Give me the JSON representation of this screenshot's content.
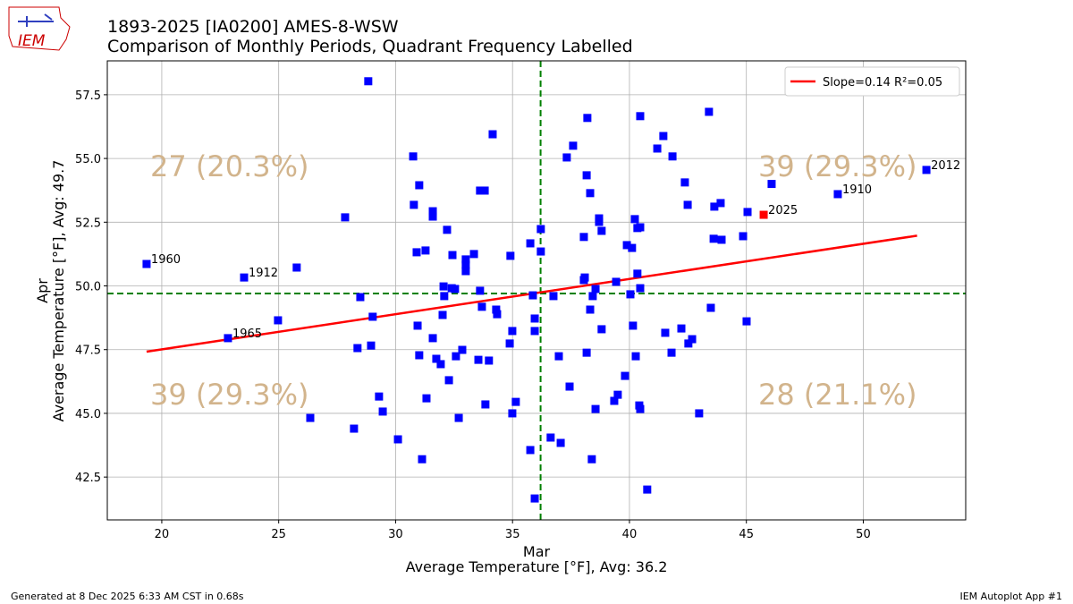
{
  "header": {
    "logo": "IEM"
  },
  "chart_data": {
    "type": "scatter",
    "title": "1893-2025 [IA0200] AMES-8-WSW",
    "subtitle": "Comparison of Monthly Periods, Quadrant Frequency Labelled",
    "x_label": "Mar",
    "x_sublabel": "Average Temperature [°F], Avg: 36.2",
    "y_label": "Apr",
    "y_sublabel": "Average Temperature [°F], Avg: 49.7",
    "xlim": [
      17.67,
      54.38
    ],
    "ylim": [
      40.82,
      58.83
    ],
    "xticks": [
      20,
      25,
      30,
      35,
      40,
      45,
      50
    ],
    "yticks": [
      42.5,
      {
        "value": 45,
        "label": "45.0"
      },
      47.5,
      {
        "value": 50,
        "label": "50.0"
      },
      52.5,
      {
        "value": 55,
        "label": "55.0"
      },
      57.5
    ],
    "grid": true,
    "x_avg": 36.2,
    "y_avg": 49.7,
    "avg_color": "#008000",
    "series": [
      {
        "color": "#0000ff",
        "x": [
          19.35,
          23.52,
          22.83,
          24.97,
          25.77,
          26.35,
          27.84,
          28.22,
          28.49,
          28.37,
          28.83,
          29.02,
          28.95,
          29.29,
          29.45,
          30.1,
          30.75,
          30.78,
          31.01,
          30.9,
          31.28,
          30.94,
          31.01,
          31.13,
          31.32,
          31.59,
          31.59,
          31.59,
          31.74,
          31.93,
          32.05,
          32.08,
          32.01,
          32.2,
          32.28,
          32.43,
          32.4,
          32.54,
          32.58,
          32.7,
          32.85,
          33.0,
          33.0,
          33.0,
          33.35,
          33.54,
          33.61,
          33.81,
          33.61,
          33.69,
          33.84,
          33.99,
          34.15,
          34.3,
          34.34,
          34.91,
          34.88,
          34.99,
          34.99,
          35.14,
          35.76,
          35.76,
          35.87,
          35.95,
          35.95,
          35.95,
          36.21,
          36.21,
          36.63,
          36.75,
          36.98,
          37.06,
          37.32,
          37.44,
          37.59,
          38.05,
          38.05,
          38.09,
          38.17,
          38.17,
          38.2,
          38.32,
          38.32,
          38.39,
          38.43,
          38.55,
          38.55,
          38.7,
          38.7,
          38.81,
          38.81,
          39.35,
          39.43,
          39.5,
          39.81,
          39.89,
          40.04,
          40.11,
          40.15,
          40.23,
          40.27,
          40.34,
          40.34,
          40.46,
          40.46,
          40.46,
          40.42,
          40.46,
          40.76,
          41.19,
          41.45,
          41.53,
          41.84,
          41.8,
          42.22,
          42.37,
          42.49,
          42.52,
          42.68,
          42.98,
          43.4,
          43.48,
          43.63,
          43.6,
          43.9,
          43.94,
          44.86,
          45.05,
          45.01,
          46.08,
          48.91,
          52.7
        ],
        "values": [
          50.86,
          50.33,
          47.95,
          48.65,
          50.72,
          44.82,
          52.69,
          44.4,
          49.56,
          47.56,
          58.03,
          48.79,
          47.66,
          45.66,
          45.07,
          43.98,
          55.08,
          53.18,
          53.95,
          51.32,
          51.39,
          48.44,
          47.28,
          43.2,
          45.59,
          52.93,
          52.72,
          47.95,
          47.14,
          46.93,
          49.98,
          49.6,
          48.86,
          52.2,
          46.3,
          51.21,
          49.91,
          49.88,
          47.24,
          44.82,
          47.49,
          51.04,
          50.83,
          50.58,
          51.25,
          47.1,
          53.74,
          53.74,
          49.81,
          49.18,
          45.35,
          47.07,
          55.95,
          49.07,
          48.89,
          51.18,
          47.74,
          48.23,
          45.0,
          45.45,
          51.67,
          43.56,
          49.63,
          48.72,
          48.23,
          41.66,
          52.23,
          51.35,
          44.05,
          49.6,
          47.24,
          43.84,
          55.04,
          46.05,
          55.5,
          51.92,
          50.23,
          50.33,
          54.34,
          47.38,
          56.59,
          53.64,
          49.07,
          43.2,
          49.6,
          49.88,
          45.17,
          52.65,
          52.51,
          52.16,
          48.3,
          45.49,
          50.16,
          45.73,
          46.47,
          51.6,
          49.67,
          51.49,
          48.44,
          52.62,
          47.24,
          52.27,
          50.48,
          56.66,
          52.3,
          49.91,
          45.31,
          45.17,
          42.01,
          55.39,
          55.88,
          48.16,
          55.08,
          47.38,
          48.33,
          54.06,
          53.18,
          47.74,
          47.91,
          45.0,
          56.83,
          49.14,
          53.11,
          51.85,
          53.25,
          51.81,
          51.95,
          52.9,
          48.61,
          54.0,
          53.6,
          54.55
        ]
      },
      {
        "color": "#ff0000",
        "x": [
          45.74
        ],
        "values": [
          52.79
        ]
      }
    ],
    "fit": {
      "name": "Slope=0.14 R²=0.05",
      "color": "#ff0000",
      "x": [
        19.35,
        52.3
      ],
      "values": [
        47.42,
        51.97
      ]
    },
    "legend": "upper right",
    "annotations": [
      {
        "text": "1960",
        "x": 19.35,
        "y": 50.86
      },
      {
        "text": "1912",
        "x": 23.52,
        "y": 50.33
      },
      {
        "text": "1965",
        "x": 22.83,
        "y": 47.95
      },
      {
        "text": "2025",
        "x": 45.74,
        "y": 52.79
      },
      {
        "text": "1910",
        "x": 48.91,
        "y": 53.6
      },
      {
        "text": "2012",
        "x": 52.7,
        "y": 54.55
      }
    ],
    "quadrant_color": "#d2b48c",
    "quadrants": {
      "upper_left": "27 (20.3%)",
      "upper_right": "39 (29.3%)",
      "lower_left": "39 (29.3%)",
      "lower_right": "28 (21.1%)"
    }
  },
  "footer": {
    "left": "Generated at 8 Dec 2025 6:33 AM CST in 0.68s",
    "right": "IEM Autoplot App #1"
  }
}
